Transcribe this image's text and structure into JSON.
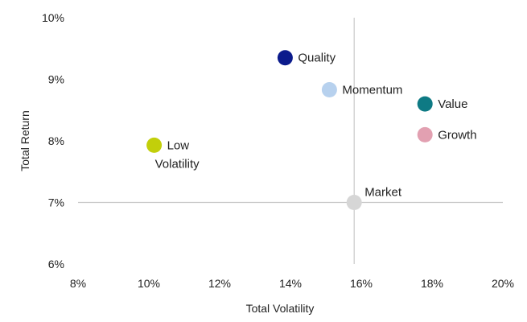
{
  "chart_data": {
    "type": "scatter",
    "xlabel": "Total Volatility",
    "ylabel": "Total Return",
    "xlim": [
      8,
      20
    ],
    "ylim": [
      6,
      10
    ],
    "x_ticks": [
      "8%",
      "10%",
      "12%",
      "14%",
      "16%",
      "18%",
      "20%"
    ],
    "y_ticks": [
      "10%",
      "9%",
      "8%",
      "7%",
      "6%"
    ],
    "grid": false,
    "reference_lines": {
      "x": 15.8,
      "y": 7.0
    },
    "points": [
      {
        "name": "Quality",
        "label_lines": [
          "Quality"
        ],
        "x": 13.85,
        "y": 9.35,
        "color": "#0b1b8c"
      },
      {
        "name": "Momentum",
        "label_lines": [
          "Momentum"
        ],
        "x": 15.1,
        "y": 8.83,
        "color": "#b7d1ee"
      },
      {
        "name": "Value",
        "label_lines": [
          "Value"
        ],
        "x": 17.8,
        "y": 8.6,
        "color": "#0e7a84"
      },
      {
        "name": "Growth",
        "label_lines": [
          "Growth"
        ],
        "x": 17.8,
        "y": 8.1,
        "color": "#e2a0b1"
      },
      {
        "name": "Low Volatility",
        "label_lines": [
          "Low",
          "Volatility"
        ],
        "x": 10.15,
        "y": 7.93,
        "color": "#c2cf0a"
      },
      {
        "name": "Market",
        "label_lines": [
          "Market"
        ],
        "x": 15.8,
        "y": 7.0,
        "color": "#d6d6d6"
      }
    ]
  }
}
